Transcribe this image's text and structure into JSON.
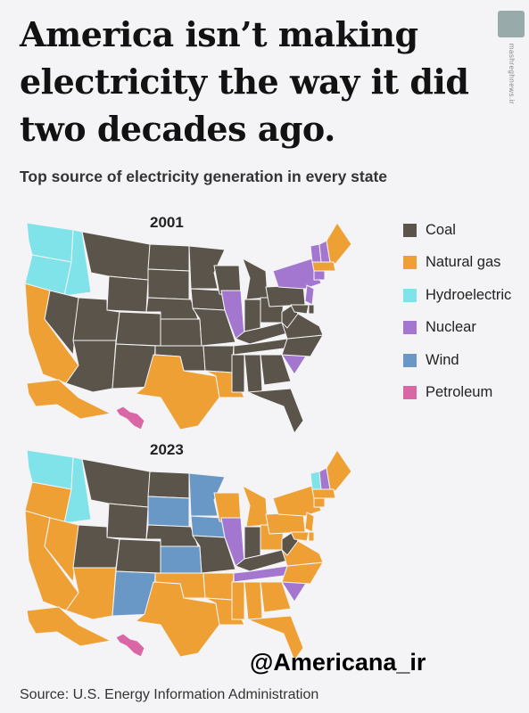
{
  "headline": "America isn’t making electricity the way it did two decades ago.",
  "subtitle": "Top source of electricity generation in every state",
  "watermark": "mashreghnews.ir",
  "legend": [
    {
      "label": "Coal",
      "color": "#5b544a"
    },
    {
      "label": "Natural gas",
      "color": "#eea035"
    },
    {
      "label": "Hydroelectric",
      "color": "#80e3ea"
    },
    {
      "label": "Nuclear",
      "color": "#a377cf"
    },
    {
      "label": "Wind",
      "color": "#6a98c6"
    },
    {
      "label": "Petroleum",
      "color": "#da67a5"
    }
  ],
  "maps": [
    {
      "year": "2001",
      "states": {
        "WA": "hydro",
        "OR": "hydro",
        "ID": "hydro",
        "CA": "gas",
        "NV": "coal",
        "MT": "coal",
        "WY": "coal",
        "UT": "coal",
        "AZ": "coal",
        "CO": "coal",
        "NM": "coal",
        "ND": "coal",
        "SD": "coal",
        "NE": "coal",
        "KS": "coal",
        "OK": "coal",
        "TX": "gas",
        "MN": "coal",
        "IA": "coal",
        "MO": "coal",
        "AR": "coal",
        "LA": "gas",
        "WI": "coal",
        "IL": "nuclear",
        "MI": "coal",
        "IN": "coal",
        "OH": "coal",
        "KY": "coal",
        "TN": "coal",
        "MS": "coal",
        "AL": "coal",
        "GA": "coal",
        "FL": "coal",
        "SC": "nuclear",
        "NC": "coal",
        "VA": "coal",
        "WV": "coal",
        "PA": "coal",
        "NY": "nuclear",
        "VT": "nuclear",
        "NH": "nuclear",
        "ME": "gas",
        "MA": "gas",
        "CT": "nuclear",
        "NJ": "nuclear",
        "MD": "coal",
        "DE": "coal",
        "AK": "gas",
        "HI": "petroleum"
      }
    },
    {
      "year": "2023",
      "states": {
        "WA": "hydro",
        "OR": "gas",
        "ID": "hydro",
        "CA": "gas",
        "NV": "gas",
        "MT": "coal",
        "WY": "coal",
        "UT": "coal",
        "AZ": "gas",
        "CO": "coal",
        "NM": "wind",
        "ND": "coal",
        "SD": "wind",
        "NE": "coal",
        "KS": "wind",
        "OK": "gas",
        "TX": "gas",
        "MN": "wind",
        "IA": "wind",
        "MO": "coal",
        "AR": "gas",
        "LA": "gas",
        "WI": "gas",
        "IL": "nuclear",
        "MI": "gas",
        "IN": "coal",
        "OH": "gas",
        "KY": "coal",
        "TN": "nuclear",
        "MS": "gas",
        "AL": "gas",
        "GA": "gas",
        "FL": "gas",
        "SC": "nuclear",
        "NC": "gas",
        "VA": "gas",
        "WV": "coal",
        "PA": "gas",
        "NY": "gas",
        "VT": "hydro",
        "NH": "nuclear",
        "ME": "gas",
        "MA": "gas",
        "CT": "gas",
        "NJ": "gas",
        "MD": "gas",
        "DE": "gas",
        "AK": "gas",
        "HI": "petroleum"
      }
    }
  ],
  "category_colors": {
    "coal": "#5b544a",
    "gas": "#eea035",
    "hydro": "#80e3ea",
    "nuclear": "#a377cf",
    "wind": "#6a98c6",
    "petroleum": "#da67a5"
  },
  "handle": "@Americana_ir",
  "source": "Source: U.S. Energy Information Administration"
}
